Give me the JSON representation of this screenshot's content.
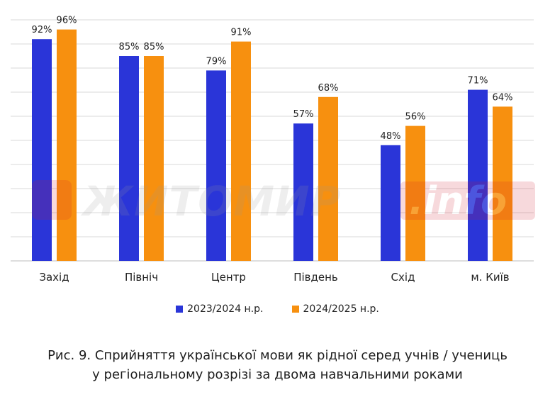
{
  "chart_data": {
    "type": "bar",
    "categories": [
      "Захід",
      "Північ",
      "Центр",
      "Південь",
      "Схід",
      "м. Київ"
    ],
    "series": [
      {
        "name": "2023/2024 н.р.",
        "values": [
          92,
          85,
          79,
          57,
          48,
          71
        ],
        "color": "#2a35d8"
      },
      {
        "name": "2024/2025 н.р.",
        "values": [
          96,
          85,
          91,
          68,
          56,
          64
        ],
        "color": "#f7900f"
      }
    ],
    "data_labels": [
      [
        "92%",
        "85%",
        "79%",
        "57%",
        "48%",
        "71%"
      ],
      [
        "96%",
        "85%",
        "91%",
        "68%",
        "56%",
        "64%"
      ]
    ],
    "ylim": [
      0,
      100
    ],
    "grid": true,
    "legend_position": "bottom"
  },
  "watermark": {
    "text": "ЖИТОМИР",
    "tag": ".info",
    "color": "#d41b2c"
  },
  "caption": {
    "line1": "Рис. 9. Сприйняття української мови як рідної серед учнів / учениць",
    "line2": "у регіональному розрізі за двома навчальними роками"
  }
}
